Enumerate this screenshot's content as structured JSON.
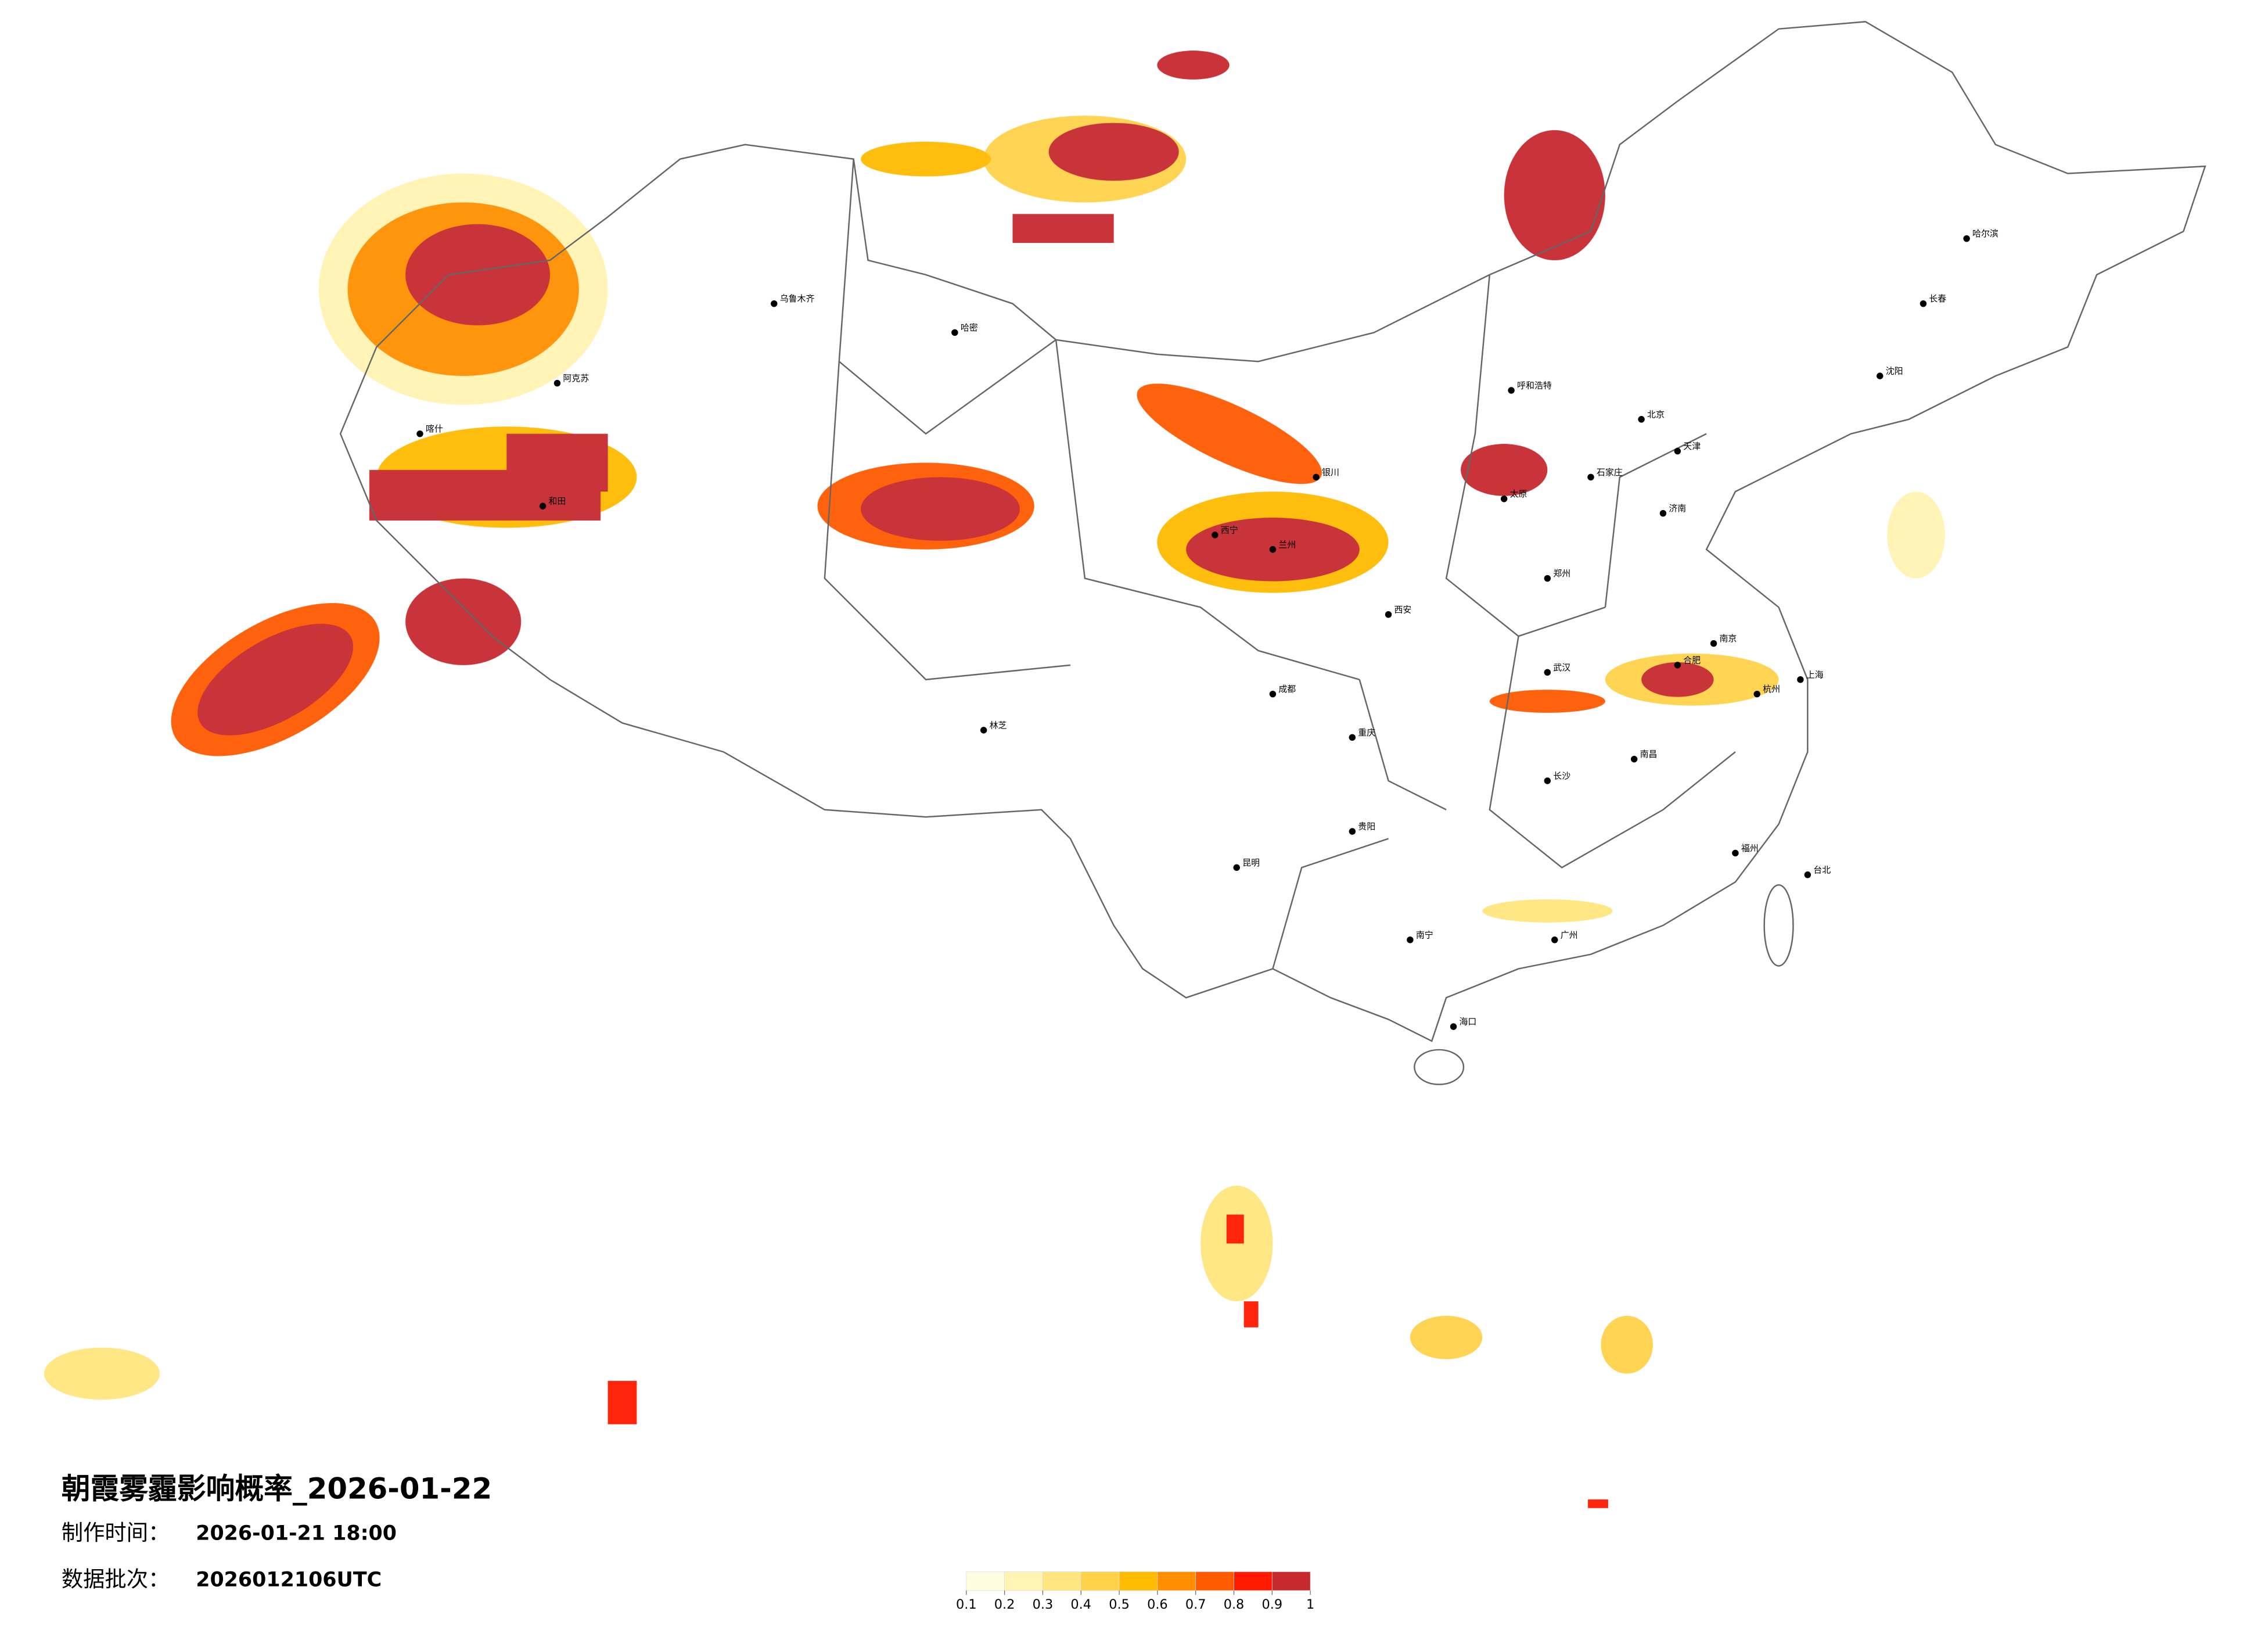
{
  "header": {
    "title": "朝霞雾霾影响概率_2026-01-22",
    "made_label": "制作时间：",
    "made_value": "2026-01-21 18:00",
    "batch_label": "数据批次：",
    "batch_value": "2026012106UTC"
  },
  "legend": {
    "ticks": [
      0.1,
      0.2,
      0.3,
      0.4,
      0.5,
      0.6,
      0.7,
      0.8,
      0.9,
      1
    ],
    "colors": [
      "#fffce0",
      "#fff4b3",
      "#ffe680",
      "#ffd24a",
      "#ffbb00",
      "#ff8f00",
      "#ff5a00",
      "#ff1a00",
      "#c62a2f"
    ]
  },
  "cities": [
    "北京",
    "天津",
    "石家庄",
    "太原",
    "呼和浩特",
    "济南",
    "郑州",
    "西安",
    "兰州",
    "银川",
    "西宁",
    "乌鲁木齐",
    "哈密",
    "阿克苏",
    "喀什",
    "和田",
    "林芝",
    "成都",
    "重庆",
    "贵阳",
    "昆明",
    "南宁",
    "广州",
    "长沙",
    "武汉",
    "南昌",
    "合肥",
    "南京",
    "杭州",
    "上海",
    "福州",
    "台北",
    "海口",
    "沈阳",
    "长春",
    "哈尔滨"
  ]
}
